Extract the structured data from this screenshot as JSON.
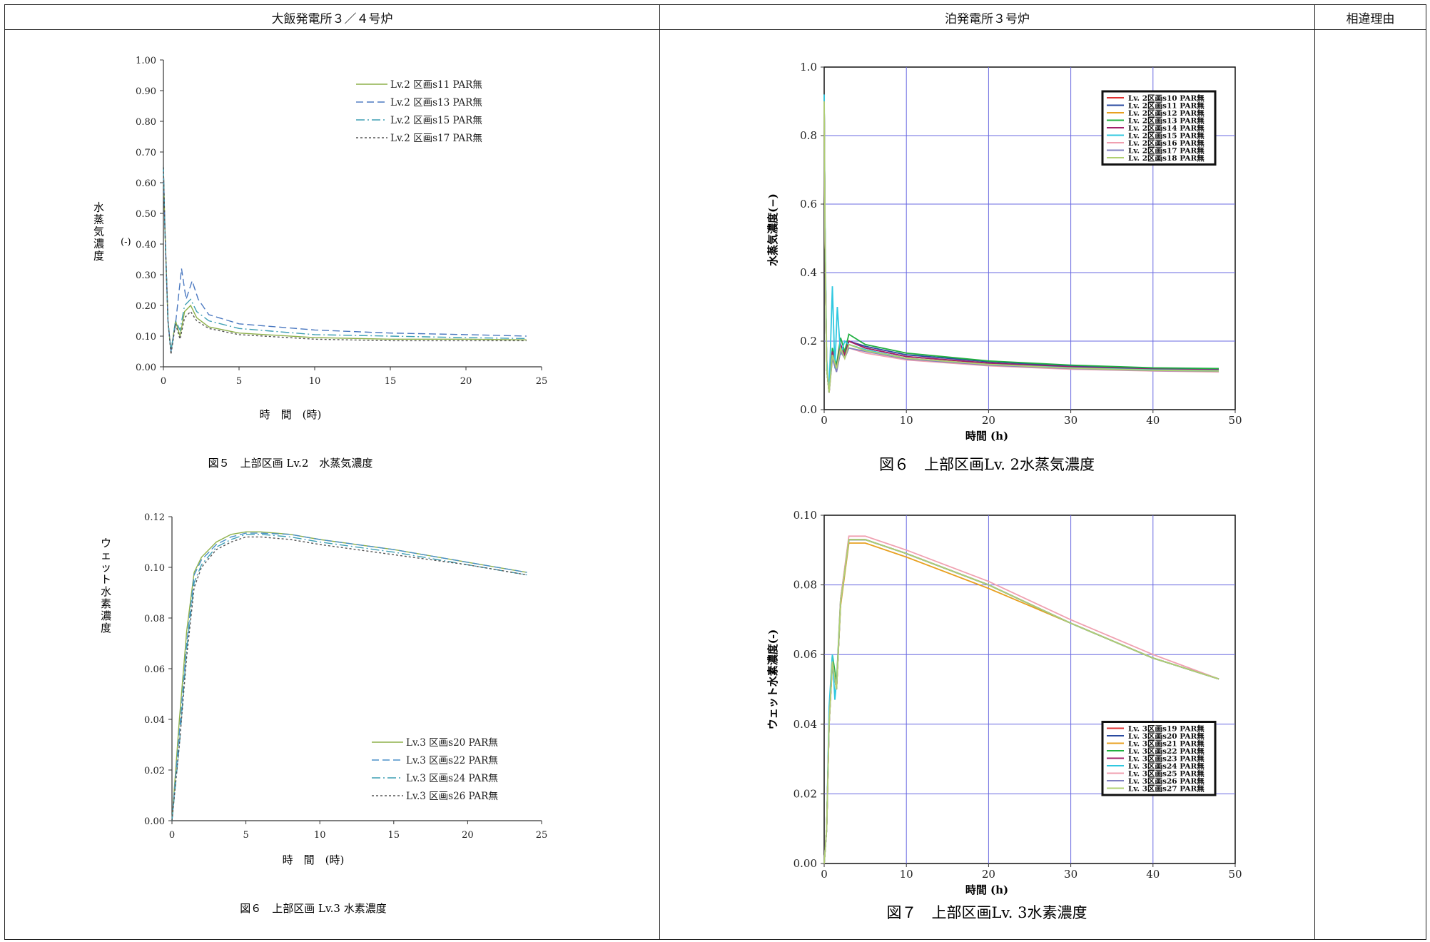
{
  "columns": {
    "left": "大飯発電所３／４号炉",
    "right": "泊発電所３号炉",
    "reason": "相違理由"
  },
  "left_fig5": {
    "caption": "図５　上部区画 Lv.2　水蒸気濃度",
    "ylabel": "水蒸気濃度(-)",
    "xlabel": "時　間　(時)"
  },
  "left_fig6": {
    "caption": "図６　上部区画 Lv.3 水素濃度",
    "ylabel": "ウェット水素濃度(-)",
    "xlabel": "時　間　(時)"
  },
  "right_fig6": {
    "caption": "図６　上部区画Lv. 2水蒸気濃度",
    "ylabel": "水蒸気濃度(−)",
    "xlabel": "時間 (h)"
  },
  "right_fig7": {
    "caption": "図７　上部区画Lv. 3水素濃度",
    "ylabel": "ウェット水素濃度(-)",
    "xlabel": "時間 (h)"
  },
  "chart_data": [
    {
      "id": "oi_steam",
      "type": "line",
      "xlim": [
        0,
        25
      ],
      "ylim": [
        0,
        1.0
      ],
      "xticks": [
        0,
        5,
        10,
        15,
        20,
        25
      ],
      "yticks": [
        0.0,
        0.1,
        0.2,
        0.3,
        0.4,
        0.5,
        0.6,
        0.7,
        0.8,
        0.9,
        1.0
      ],
      "yfmt": 2,
      "grid": false,
      "legend": "top-right",
      "series": [
        {
          "name": "Lv.2 区画s11 PAR無",
          "color": "#8db04a",
          "dash": "",
          "x": [
            0,
            0.1,
            0.3,
            0.5,
            0.8,
            1.1,
            1.4,
            1.8,
            2.2,
            3,
            5,
            10,
            15,
            20,
            24
          ],
          "y": [
            0.65,
            0.45,
            0.15,
            0.05,
            0.15,
            0.1,
            0.18,
            0.2,
            0.16,
            0.13,
            0.11,
            0.095,
            0.09,
            0.09,
            0.088
          ]
        },
        {
          "name": "Lv.2 区画s13 PAR無",
          "color": "#4a78c0",
          "dash": "10,5",
          "x": [
            0,
            0.1,
            0.3,
            0.5,
            0.8,
            1.2,
            1.5,
            1.9,
            2.3,
            3,
            5,
            10,
            15,
            20,
            24
          ],
          "y": [
            0.65,
            0.45,
            0.15,
            0.05,
            0.14,
            0.32,
            0.22,
            0.28,
            0.22,
            0.17,
            0.14,
            0.12,
            0.11,
            0.105,
            0.1
          ]
        },
        {
          "name": "Lv.2 区画s15 PAR無",
          "color": "#3f9fb4",
          "dash": "12,4,2,4",
          "x": [
            0,
            0.1,
            0.3,
            0.5,
            0.8,
            1.1,
            1.4,
            1.8,
            2.2,
            3,
            5,
            10,
            15,
            20,
            24
          ],
          "y": [
            0.65,
            0.45,
            0.15,
            0.05,
            0.15,
            0.12,
            0.2,
            0.22,
            0.18,
            0.15,
            0.125,
            0.105,
            0.1,
            0.095,
            0.092
          ]
        },
        {
          "name": "Lv.2 区画s17 PAR無",
          "color": "#555555",
          "dash": "3,3",
          "x": [
            0,
            0.1,
            0.3,
            0.5,
            0.8,
            1.1,
            1.4,
            1.8,
            2.2,
            3,
            5,
            10,
            15,
            20,
            24
          ],
          "y": [
            0.65,
            0.45,
            0.15,
            0.04,
            0.14,
            0.09,
            0.16,
            0.18,
            0.15,
            0.125,
            0.105,
            0.09,
            0.085,
            0.085,
            0.085
          ]
        }
      ]
    },
    {
      "id": "oi_h2",
      "type": "line",
      "xlim": [
        0,
        25
      ],
      "ylim": [
        0,
        0.12
      ],
      "xticks": [
        0,
        5,
        10,
        15,
        20,
        25
      ],
      "yticks": [
        0.0,
        0.02,
        0.04,
        0.06,
        0.08,
        0.1,
        0.12
      ],
      "yfmt": 2,
      "grid": false,
      "legend": "bottom-right",
      "series": [
        {
          "name": "Lv.3 区画s20 PAR無",
          "color": "#8db04a",
          "dash": "",
          "x": [
            0,
            0.5,
            1,
            1.5,
            2,
            3,
            4,
            5,
            6,
            8,
            10,
            15,
            20,
            24
          ],
          "y": [
            0,
            0.04,
            0.075,
            0.098,
            0.104,
            0.11,
            0.113,
            0.114,
            0.114,
            0.113,
            0.111,
            0.107,
            0.102,
            0.098
          ]
        },
        {
          "name": "Lv.3 区画s22 PAR無",
          "color": "#4a90c8",
          "dash": "10,5",
          "x": [
            0,
            0.5,
            1,
            1.5,
            2,
            3,
            4,
            5,
            6,
            8,
            10,
            15,
            20,
            24
          ],
          "y": [
            0,
            0.035,
            0.07,
            0.097,
            0.103,
            0.109,
            0.112,
            0.1135,
            0.1135,
            0.113,
            0.111,
            0.107,
            0.102,
            0.098
          ]
        },
        {
          "name": "Lv.3 区画s24 PAR無",
          "color": "#3f9fb4",
          "dash": "12,4,2,4",
          "x": [
            0,
            0.5,
            1,
            1.5,
            2,
            3,
            4,
            5,
            6,
            8,
            10,
            15,
            20,
            24
          ],
          "y": [
            0,
            0.03,
            0.068,
            0.094,
            0.101,
            0.108,
            0.111,
            0.113,
            0.113,
            0.112,
            0.11,
            0.106,
            0.101,
            0.097
          ]
        },
        {
          "name": "Lv.3 区画s26 PAR無",
          "color": "#555555",
          "dash": "3,3",
          "x": [
            0,
            0.5,
            1,
            1.5,
            2,
            3,
            4,
            5,
            6,
            8,
            10,
            15,
            20,
            24
          ],
          "y": [
            0,
            0.03,
            0.065,
            0.092,
            0.1,
            0.107,
            0.11,
            0.112,
            0.112,
            0.111,
            0.109,
            0.105,
            0.101,
            0.097
          ]
        }
      ]
    },
    {
      "id": "tomari_steam",
      "type": "line",
      "xlim": [
        0,
        50
      ],
      "ylim": [
        0,
        1.0
      ],
      "xticks": [
        0,
        10,
        20,
        30,
        40,
        50
      ],
      "yticks": [
        0.0,
        0.2,
        0.4,
        0.6,
        0.8,
        1.0
      ],
      "yfmt": 1,
      "grid": true,
      "legend": "top-right",
      "series": [
        {
          "name": "Lv. 2区画s10 PAR無",
          "color": "#e03030",
          "x": [
            0,
            0.1,
            0.3,
            0.6,
            1,
            1.5,
            2,
            2.5,
            3,
            5,
            10,
            20,
            30,
            40,
            48
          ],
          "y": [
            0.9,
            0.5,
            0.12,
            0.05,
            0.17,
            0.12,
            0.19,
            0.16,
            0.2,
            0.18,
            0.155,
            0.135,
            0.125,
            0.118,
            0.115
          ]
        },
        {
          "name": "Lv. 2区画s11 PAR無",
          "color": "#2a4aa0",
          "x": [
            0,
            0.1,
            0.3,
            0.6,
            1,
            1.5,
            2,
            2.5,
            3,
            5,
            10,
            20,
            30,
            40,
            48
          ],
          "y": [
            0.9,
            0.5,
            0.12,
            0.05,
            0.17,
            0.12,
            0.19,
            0.16,
            0.2,
            0.185,
            0.16,
            0.14,
            0.127,
            0.12,
            0.118
          ]
        },
        {
          "name": "Lv. 2区画s12 PAR無",
          "color": "#e8a020",
          "x": [
            0,
            0.1,
            0.3,
            0.6,
            1,
            1.5,
            2,
            2.5,
            3,
            5,
            10,
            20,
            30,
            40,
            48
          ],
          "y": [
            0.9,
            0.5,
            0.12,
            0.05,
            0.16,
            0.12,
            0.18,
            0.15,
            0.19,
            0.175,
            0.15,
            0.13,
            0.12,
            0.115,
            0.112
          ]
        },
        {
          "name": "Lv. 2区画s13 PAR無",
          "color": "#20b040",
          "x": [
            0,
            0.1,
            0.3,
            0.6,
            1,
            1.5,
            2,
            2.5,
            3,
            5,
            10,
            20,
            30,
            40,
            48
          ],
          "y": [
            0.9,
            0.5,
            0.12,
            0.05,
            0.18,
            0.13,
            0.21,
            0.17,
            0.22,
            0.19,
            0.165,
            0.142,
            0.13,
            0.122,
            0.12
          ]
        },
        {
          "name": "Lv. 2区画s14 PAR無",
          "color": "#a0206a",
          "x": [
            0,
            0.1,
            0.3,
            0.6,
            1,
            1.5,
            2,
            2.5,
            3,
            5,
            10,
            20,
            30,
            40,
            48
          ],
          "y": [
            0.9,
            0.5,
            0.12,
            0.05,
            0.17,
            0.12,
            0.19,
            0.16,
            0.2,
            0.18,
            0.155,
            0.136,
            0.125,
            0.118,
            0.116
          ]
        },
        {
          "name": "Lv. 2区画s15 PAR無",
          "color": "#30c8e0",
          "x": [
            0,
            0.1,
            0.3,
            0.6,
            1,
            1.3,
            1.6,
            2,
            2.5,
            3,
            5,
            10,
            20,
            30,
            40,
            48
          ],
          "y": [
            0.92,
            0.55,
            0.15,
            0.05,
            0.36,
            0.12,
            0.3,
            0.16,
            0.2,
            0.19,
            0.175,
            0.15,
            0.132,
            0.122,
            0.116,
            0.114
          ]
        },
        {
          "name": "Lv. 2区画s16 PAR無",
          "color": "#f0a0b0",
          "x": [
            0,
            0.1,
            0.3,
            0.6,
            1,
            1.5,
            2,
            2.5,
            3,
            5,
            10,
            20,
            30,
            40,
            48
          ],
          "y": [
            0.9,
            0.5,
            0.12,
            0.05,
            0.15,
            0.11,
            0.17,
            0.15,
            0.18,
            0.165,
            0.145,
            0.128,
            0.118,
            0.113,
            0.11
          ]
        },
        {
          "name": "Lv. 2区画s17 PAR無",
          "color": "#8080c0",
          "x": [
            0,
            0.1,
            0.3,
            0.6,
            1,
            1.5,
            2,
            2.5,
            3,
            5,
            10,
            20,
            30,
            40,
            48
          ],
          "y": [
            0.9,
            0.5,
            0.12,
            0.05,
            0.15,
            0.11,
            0.17,
            0.15,
            0.18,
            0.17,
            0.148,
            0.13,
            0.12,
            0.114,
            0.112
          ]
        },
        {
          "name": "Lv. 2区画s18 PAR無",
          "color": "#b0d070",
          "x": [
            0,
            0.1,
            0.3,
            0.6,
            1,
            1.5,
            2,
            2.5,
            3,
            5,
            10,
            20,
            30,
            40,
            48
          ],
          "y": [
            0.9,
            0.5,
            0.12,
            0.05,
            0.16,
            0.12,
            0.18,
            0.15,
            0.19,
            0.172,
            0.15,
            0.132,
            0.121,
            0.115,
            0.113
          ]
        }
      ]
    },
    {
      "id": "tomari_h2",
      "type": "line",
      "xlim": [
        0,
        50
      ],
      "ylim": [
        0,
        0.1
      ],
      "xticks": [
        0,
        10,
        20,
        30,
        40,
        50
      ],
      "yticks": [
        0.0,
        0.02,
        0.04,
        0.06,
        0.08,
        0.1
      ],
      "yfmt": 2,
      "grid": true,
      "legend": "bottom-right",
      "series": [
        {
          "name": "Lv. 3区画s19 PAR無",
          "color": "#e03030",
          "x": [
            0,
            0.3,
            0.6,
            1,
            1.5,
            2,
            3,
            5,
            10,
            20,
            30,
            40,
            48
          ],
          "y": [
            0,
            0.01,
            0.04,
            0.058,
            0.05,
            0.075,
            0.093,
            0.093,
            0.089,
            0.08,
            0.069,
            0.059,
            0.053
          ]
        },
        {
          "name": "Lv. 3区画s20 PAR無",
          "color": "#2a4aa0",
          "x": [
            0,
            0.3,
            0.6,
            1,
            1.5,
            2,
            3,
            5,
            10,
            20,
            30,
            40,
            48
          ],
          "y": [
            0,
            0.01,
            0.04,
            0.058,
            0.05,
            0.075,
            0.093,
            0.093,
            0.089,
            0.08,
            0.069,
            0.059,
            0.053
          ]
        },
        {
          "name": "Lv. 3区画s21 PAR無",
          "color": "#e8a020",
          "x": [
            0,
            0.3,
            0.6,
            1,
            1.5,
            2,
            3,
            5,
            10,
            20,
            30,
            40,
            48
          ],
          "y": [
            0,
            0.01,
            0.04,
            0.057,
            0.05,
            0.074,
            0.092,
            0.092,
            0.088,
            0.079,
            0.069,
            0.059,
            0.053
          ]
        },
        {
          "name": "Lv. 3区画s22 PAR無",
          "color": "#20b040",
          "x": [
            0,
            0.3,
            0.6,
            1,
            1.5,
            2,
            3,
            5,
            10,
            20,
            30,
            40,
            48
          ],
          "y": [
            0,
            0.01,
            0.042,
            0.06,
            0.052,
            0.076,
            0.093,
            0.093,
            0.089,
            0.08,
            0.069,
            0.059,
            0.053
          ]
        },
        {
          "name": "Lv. 3区画s23 PAR無",
          "color": "#a0206a",
          "x": [
            0,
            0.3,
            0.6,
            1,
            1.5,
            2,
            3,
            5,
            10,
            20,
            30,
            40,
            48
          ],
          "y": [
            0,
            0.01,
            0.04,
            0.058,
            0.05,
            0.075,
            0.093,
            0.093,
            0.089,
            0.08,
            0.069,
            0.059,
            0.053
          ]
        },
        {
          "name": "Lv. 3区画s24 PAR無",
          "color": "#30c8e0",
          "x": [
            0,
            0.3,
            0.6,
            1,
            1.3,
            1.6,
            2,
            3,
            5,
            10,
            20,
            30,
            40,
            48
          ],
          "y": [
            0,
            0.01,
            0.045,
            0.06,
            0.047,
            0.055,
            0.075,
            0.093,
            0.093,
            0.089,
            0.08,
            0.069,
            0.059,
            0.053
          ]
        },
        {
          "name": "Lv. 3区画s25 PAR無",
          "color": "#f0a0b0",
          "x": [
            0,
            0.3,
            0.6,
            1,
            1.5,
            2,
            3,
            5,
            10,
            20,
            30,
            40,
            48
          ],
          "y": [
            0,
            0.01,
            0.04,
            0.058,
            0.05,
            0.076,
            0.094,
            0.094,
            0.09,
            0.081,
            0.07,
            0.06,
            0.053
          ]
        },
        {
          "name": "Lv. 3区画s26 PAR無",
          "color": "#8080c0",
          "x": [
            0,
            0.3,
            0.6,
            1,
            1.5,
            2,
            3,
            5,
            10,
            20,
            30,
            40,
            48
          ],
          "y": [
            0,
            0.01,
            0.04,
            0.058,
            0.05,
            0.075,
            0.093,
            0.093,
            0.089,
            0.08,
            0.069,
            0.059,
            0.053
          ]
        },
        {
          "name": "Lv. 3区画s27 PAR無",
          "color": "#b0d070",
          "x": [
            0,
            0.3,
            0.6,
            1,
            1.5,
            2,
            3,
            5,
            10,
            20,
            30,
            40,
            48
          ],
          "y": [
            0,
            0.01,
            0.04,
            0.058,
            0.05,
            0.075,
            0.093,
            0.093,
            0.089,
            0.08,
            0.069,
            0.059,
            0.053
          ]
        }
      ]
    }
  ]
}
